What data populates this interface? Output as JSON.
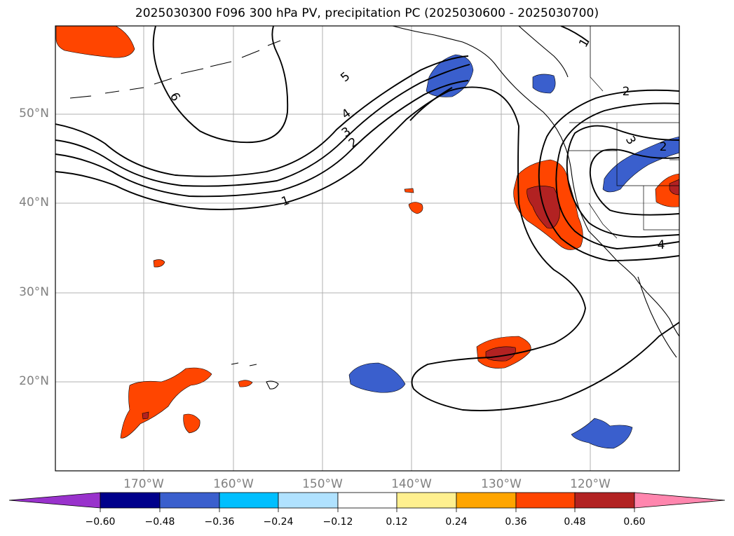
{
  "title": "2025030300 F096 300 hPa PV, precipitation PC (2025030600 - 2025030700)",
  "lat_labels": [
    "50°N",
    "40°N",
    "30°N",
    "20°N"
  ],
  "lon_labels": [
    "170°W",
    "160°W",
    "150°W",
    "140°W",
    "130°W",
    "120°W"
  ],
  "contour_labels": [
    "6",
    "5",
    "4",
    "3",
    "2",
    "1",
    "1",
    "2",
    "3",
    "2",
    "4"
  ],
  "colorbar": {
    "ticks": [
      "−0.60",
      "−0.48",
      "−0.36",
      "−0.24",
      "−0.12",
      "0.12",
      "0.24",
      "0.36",
      "0.48",
      "0.60"
    ],
    "colors": [
      "#9932cc",
      "#00008b",
      "#3a5fcd",
      "#00bfff",
      "#b0e2ff",
      "#ffffff",
      "#fff08f",
      "#ffa500",
      "#ff4500",
      "#b22222",
      "#ff86ae"
    ]
  },
  "colors": {
    "positive_strong": "#b22222",
    "positive": "#ff4500",
    "positive_weak": "#ffa500",
    "positive_faint": "#fff08f",
    "negative": "#3a5fcd",
    "negative_weak": "#00bfff",
    "negative_faint": "#b0e2ff",
    "grid": "#b0b0b0",
    "contour": "#000000"
  }
}
